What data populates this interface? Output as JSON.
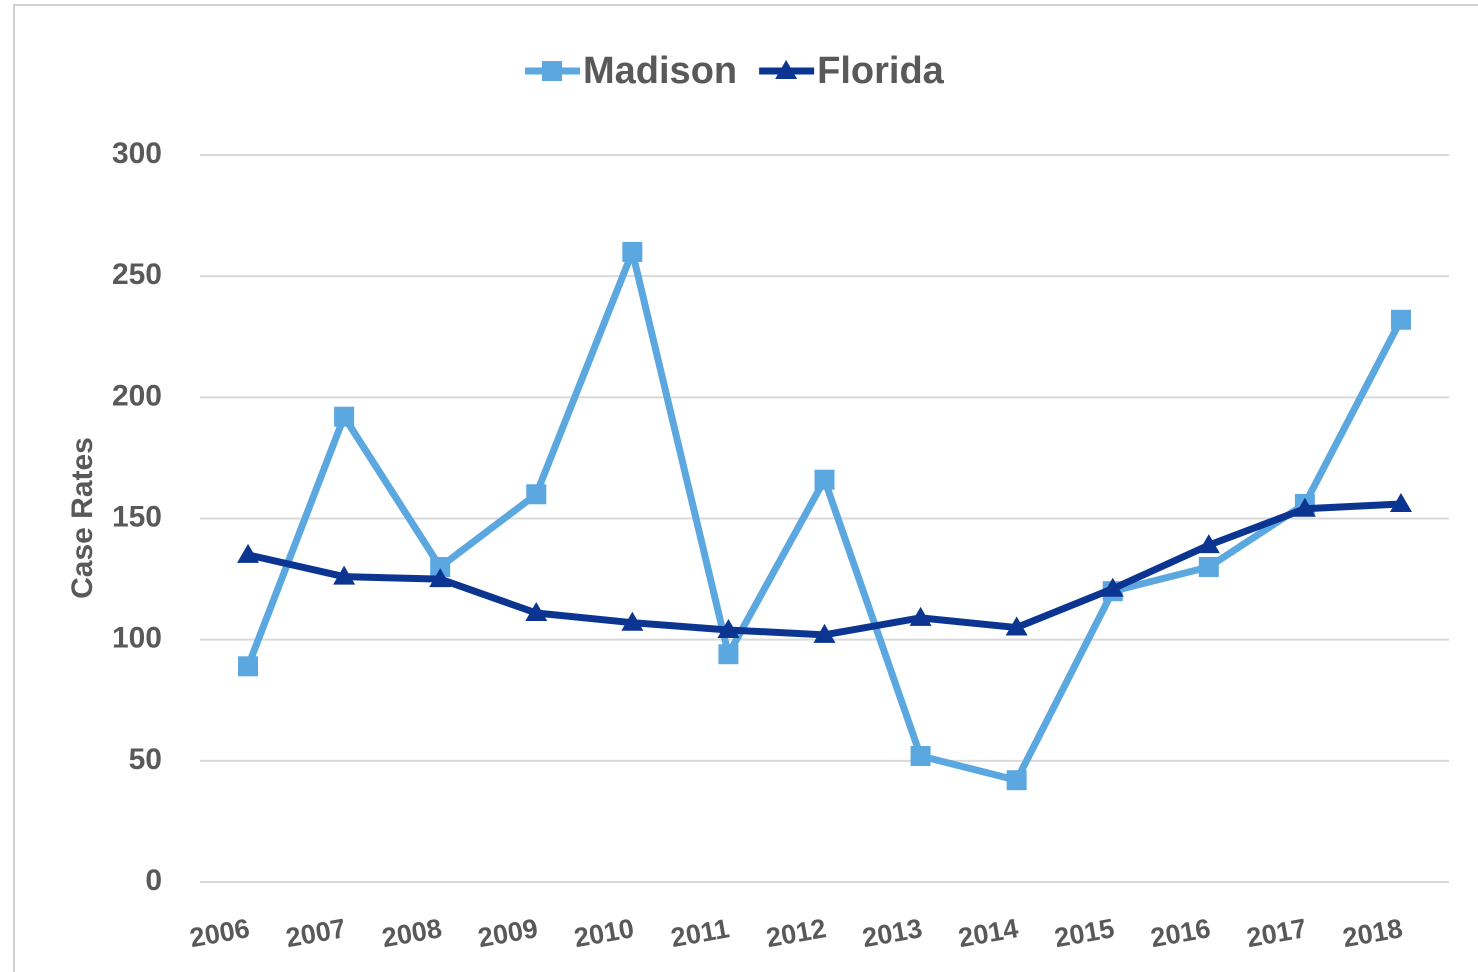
{
  "chart_data": {
    "type": "line",
    "y_label": "Case Rates",
    "categories": [
      "2006",
      "2007",
      "2008",
      "2009",
      "2010",
      "2011",
      "2012",
      "2013",
      "2014",
      "2015",
      "2016",
      "2017",
      "2018"
    ],
    "series": [
      {
        "name": "Madison",
        "color": "#5ba7e0",
        "marker": "square",
        "values": [
          89,
          192,
          130,
          160,
          260,
          94,
          166,
          52,
          42,
          120,
          130,
          156,
          232
        ]
      },
      {
        "name": "Florida",
        "color": "#0b3591",
        "marker": "triangle",
        "values": [
          135,
          126,
          125,
          111,
          107,
          104,
          102,
          109,
          105,
          121,
          139,
          154,
          156
        ]
      }
    ],
    "ylim": [
      0,
      300
    ],
    "yticks": [
      0,
      50,
      100,
      150,
      200,
      250,
      300
    ],
    "grid": true,
    "legend": "top"
  }
}
